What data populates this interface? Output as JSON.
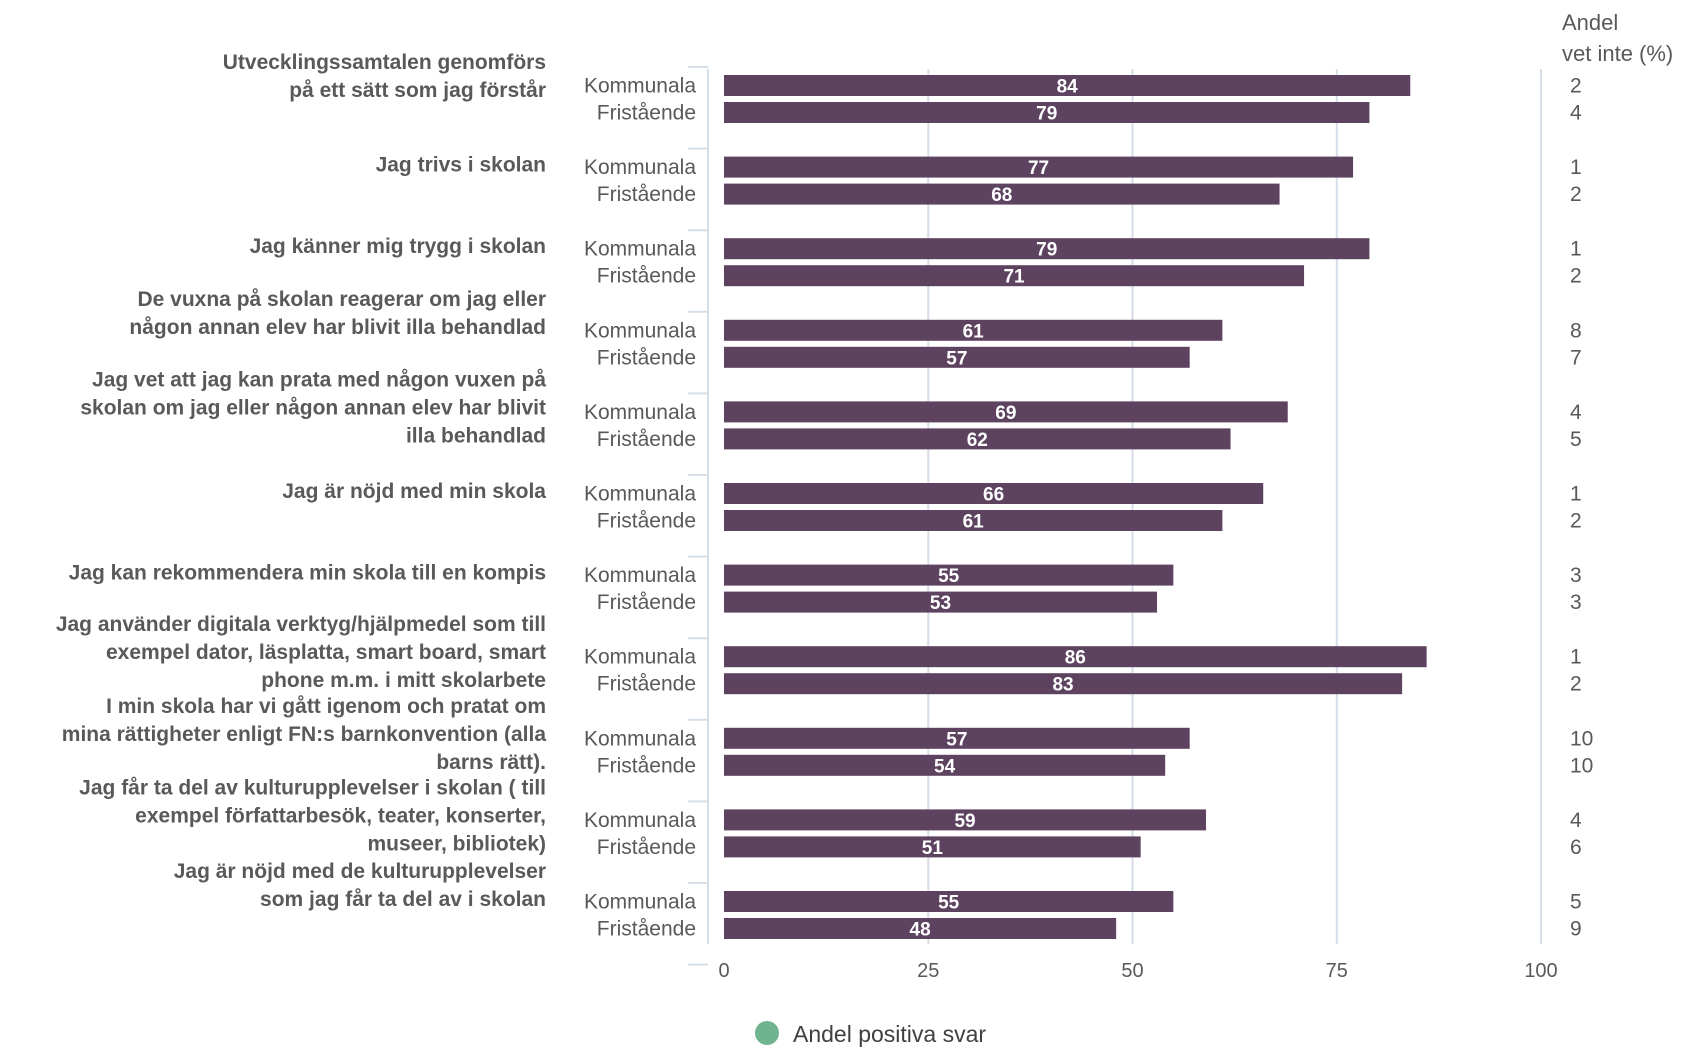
{
  "colors": {
    "bar": "#5e4360",
    "legend_marker": "#6fb48e",
    "grid": "#d5dde8",
    "text": "#595959"
  },
  "vet_inte_header": [
    "Andel",
    "vet inte (%)"
  ],
  "legend_label": "Andel positiva svar",
  "chart_data": {
    "type": "bar",
    "orientation": "horizontal",
    "xlim": [
      0,
      100
    ],
    "xticks": [
      0,
      25,
      50,
      75,
      100
    ],
    "grid": true,
    "legend_position": "bottom",
    "groups": [
      "Kommunala",
      "Fristående"
    ],
    "questions": [
      {
        "label": [
          "Utvecklingssamtalen genomförs",
          "på ett sätt som jag förstår"
        ],
        "values": [
          84,
          79
        ],
        "vet_inte": [
          2,
          4
        ]
      },
      {
        "label": [
          "Jag trivs i skolan"
        ],
        "values": [
          77,
          68
        ],
        "vet_inte": [
          1,
          2
        ]
      },
      {
        "label": [
          "Jag känner mig trygg i skolan"
        ],
        "values": [
          79,
          71
        ],
        "vet_inte": [
          1,
          2
        ]
      },
      {
        "label": [
          "De vuxna på skolan reagerar om jag eller",
          "någon annan elev har blivit illa behandlad"
        ],
        "values": [
          61,
          57
        ],
        "vet_inte": [
          8,
          7
        ]
      },
      {
        "label": [
          "Jag vet att jag kan prata med någon vuxen på",
          "skolan om jag eller någon annan elev har blivit",
          "illa behandlad"
        ],
        "values": [
          69,
          62
        ],
        "vet_inte": [
          4,
          5
        ]
      },
      {
        "label": [
          "Jag är nöjd med min skola"
        ],
        "values": [
          66,
          61
        ],
        "vet_inte": [
          1,
          2
        ]
      },
      {
        "label": [
          "Jag kan rekommendera min skola till en kompis"
        ],
        "values": [
          55,
          53
        ],
        "vet_inte": [
          3,
          3
        ]
      },
      {
        "label": [
          "Jag använder digitala verktyg/hjälpmedel som till",
          "exempel dator, läsplatta, smart board, smart",
          "phone m.m. i mitt skolarbete"
        ],
        "values": [
          86,
          83
        ],
        "vet_inte": [
          1,
          2
        ]
      },
      {
        "label": [
          "I min skola har vi gått igenom och pratat om",
          "mina rättigheter enligt FN:s barnkonvention (alla",
          "barns rätt)."
        ],
        "values": [
          57,
          54
        ],
        "vet_inte": [
          10,
          10
        ]
      },
      {
        "label": [
          "Jag får ta del av kulturupplevelser i skolan ( till",
          "exempel författarbesök, teater, konserter,",
          "museer, bibliotek)"
        ],
        "values": [
          59,
          51
        ],
        "vet_inte": [
          4,
          6
        ]
      },
      {
        "label": [
          "Jag är nöjd med de kulturupplevelser",
          "som jag får ta del av i skolan"
        ],
        "values": [
          55,
          48
        ],
        "vet_inte": [
          5,
          9
        ]
      }
    ]
  }
}
